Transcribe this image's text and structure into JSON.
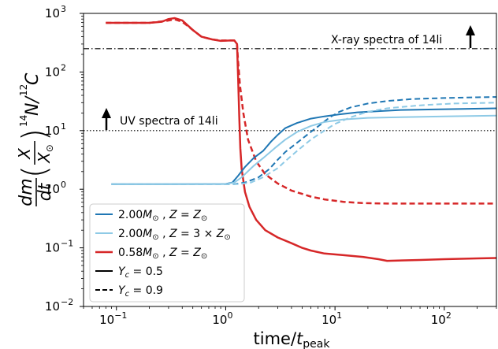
{
  "chart_data": {
    "type": "line",
    "xlabel": "time/t_peak",
    "ylabel": "dm/dt (X/X⊙) ¹⁴N/¹²C",
    "x_scale": "log",
    "y_scale": "log",
    "xlim": [
      0.05,
      300
    ],
    "ylim": [
      0.01,
      1000
    ],
    "x_ticks": [
      {
        "value": 0.1,
        "base": "10",
        "exp": "−1"
      },
      {
        "value": 1,
        "base": "10",
        "exp": "0"
      },
      {
        "value": 10,
        "base": "10",
        "exp": "1"
      },
      {
        "value": 100,
        "base": "10",
        "exp": "2"
      }
    ],
    "y_ticks": [
      {
        "value": 0.01,
        "base": "10",
        "exp": "−2"
      },
      {
        "value": 0.1,
        "base": "10",
        "exp": "−1"
      },
      {
        "value": 1,
        "base": "10",
        "exp": "0"
      },
      {
        "value": 10,
        "base": "10",
        "exp": "1"
      },
      {
        "value": 100,
        "base": "10",
        "exp": "2"
      },
      {
        "value": 1000,
        "base": "10",
        "exp": "3"
      }
    ],
    "reference_lines": [
      {
        "y": 250,
        "style": "dashdot",
        "label": "X-ray spectra of 14li"
      },
      {
        "y": 10,
        "style": "dotted",
        "label": "UV spectra of 14li"
      }
    ],
    "legend": {
      "placement": "lower-left",
      "entries": [
        {
          "label": "2.00M⊙ , Z = Z⊙",
          "color": "#1f77b4",
          "style": "solid"
        },
        {
          "label": "2.00M⊙ , Z = 3 × Z⊙",
          "color": "#8ecae6",
          "style": "solid"
        },
        {
          "label": "0.58M⊙ , Z = Z⊙",
          "color": "#d62728",
          "style": "solid"
        },
        {
          "label": "Yc = 0.5",
          "color": "#000000",
          "style": "solid"
        },
        {
          "label": "Yc = 0.9",
          "color": "#000000",
          "style": "dashed"
        }
      ]
    },
    "series": [
      {
        "color": "#d62728",
        "style": "solid",
        "width": 2.5,
        "points": [
          [
            0.08,
            690
          ],
          [
            0.2,
            690
          ],
          [
            0.26,
            720
          ],
          [
            0.3,
            800
          ],
          [
            0.34,
            830
          ],
          [
            0.4,
            760
          ],
          [
            0.5,
            520
          ],
          [
            0.6,
            400
          ],
          [
            0.75,
            360
          ],
          [
            0.9,
            340
          ],
          [
            1.1,
            345
          ],
          [
            1.2,
            345
          ],
          [
            1.27,
            300
          ],
          [
            1.3,
            80
          ],
          [
            1.33,
            18
          ],
          [
            1.36,
            5
          ],
          [
            1.4,
            2.2
          ],
          [
            1.5,
            0.9
          ],
          [
            1.65,
            0.5
          ],
          [
            1.9,
            0.3
          ],
          [
            2.3,
            0.2
          ],
          [
            3,
            0.15
          ],
          [
            4,
            0.12
          ],
          [
            5,
            0.1
          ],
          [
            6,
            0.09
          ],
          [
            8,
            0.08
          ],
          [
            12,
            0.075
          ],
          [
            18,
            0.07
          ],
          [
            25,
            0.064
          ],
          [
            30,
            0.06
          ],
          [
            60,
            0.062
          ],
          [
            100,
            0.064
          ],
          [
            200,
            0.066
          ],
          [
            300,
            0.067
          ]
        ]
      },
      {
        "color": "#d62728",
        "style": "dashed",
        "width": 2.5,
        "points": [
          [
            0.08,
            690
          ],
          [
            0.2,
            690
          ],
          [
            0.28,
            740
          ],
          [
            0.34,
            790
          ],
          [
            0.4,
            720
          ],
          [
            0.5,
            520
          ],
          [
            0.6,
            400
          ],
          [
            0.75,
            360
          ],
          [
            0.9,
            345
          ],
          [
            1.1,
            345
          ],
          [
            1.2,
            345
          ],
          [
            1.27,
            300
          ],
          [
            1.3,
            150
          ],
          [
            1.35,
            60
          ],
          [
            1.45,
            20
          ],
          [
            1.6,
            7
          ],
          [
            1.9,
            3
          ],
          [
            2.3,
            1.8
          ],
          [
            3,
            1.25
          ],
          [
            4,
            0.95
          ],
          [
            6,
            0.75
          ],
          [
            8,
            0.67
          ],
          [
            12,
            0.61
          ],
          [
            18,
            0.58
          ],
          [
            30,
            0.57
          ],
          [
            100,
            0.57
          ],
          [
            300,
            0.57
          ]
        ]
      },
      {
        "color": "#1f77b4",
        "style": "solid",
        "width": 2,
        "points": [
          [
            0.09,
            1.22
          ],
          [
            0.3,
            1.22
          ],
          [
            1,
            1.23
          ],
          [
            1.15,
            1.3
          ],
          [
            1.3,
            1.7
          ],
          [
            1.5,
            2.4
          ],
          [
            1.8,
            3.4
          ],
          [
            2.2,
            4.5
          ],
          [
            2.6,
            6.5
          ],
          [
            3,
            8.5
          ],
          [
            3.5,
            11
          ],
          [
            4.5,
            13.5
          ],
          [
            6,
            16
          ],
          [
            8,
            17.5
          ],
          [
            11,
            19
          ],
          [
            16,
            20.5
          ],
          [
            25,
            21.5
          ],
          [
            40,
            22.5
          ],
          [
            80,
            23
          ],
          [
            150,
            23.5
          ],
          [
            300,
            24
          ]
        ]
      },
      {
        "color": "#1f77b4",
        "style": "dashed",
        "width": 2,
        "points": [
          [
            0.09,
            1.22
          ],
          [
            1.2,
            1.22
          ],
          [
            1.5,
            1.3
          ],
          [
            2,
            1.6
          ],
          [
            2.5,
            2.2
          ],
          [
            3,
            3.2
          ],
          [
            3.5,
            4.3
          ],
          [
            4.5,
            6.2
          ],
          [
            6,
            9.5
          ],
          [
            7.5,
            13
          ],
          [
            9,
            17
          ],
          [
            11,
            21
          ],
          [
            14,
            25
          ],
          [
            20,
            29
          ],
          [
            30,
            32
          ],
          [
            50,
            34.5
          ],
          [
            100,
            36
          ],
          [
            200,
            37
          ],
          [
            300,
            37.5
          ]
        ]
      },
      {
        "color": "#8ecae6",
        "style": "solid",
        "width": 2,
        "points": [
          [
            0.09,
            1.22
          ],
          [
            0.3,
            1.22
          ],
          [
            1,
            1.22
          ],
          [
            1.2,
            1.3
          ],
          [
            1.4,
            1.6
          ],
          [
            1.8,
            2.5
          ],
          [
            2.2,
            3.4
          ],
          [
            2.8,
            5
          ],
          [
            3.5,
            7
          ],
          [
            4.5,
            9.5
          ],
          [
            6,
            12
          ],
          [
            8,
            14
          ],
          [
            12,
            15.5
          ],
          [
            20,
            16.5
          ],
          [
            40,
            17
          ],
          [
            100,
            17.5
          ],
          [
            300,
            18
          ]
        ]
      },
      {
        "color": "#8ecae6",
        "style": "dashed",
        "width": 2,
        "points": [
          [
            0.09,
            1.22
          ],
          [
            1.3,
            1.22
          ],
          [
            1.7,
            1.3
          ],
          [
            2.2,
            1.6
          ],
          [
            3,
            2.3
          ],
          [
            3.5,
            3
          ],
          [
            4.5,
            4.5
          ],
          [
            6,
            7
          ],
          [
            8,
            10
          ],
          [
            10,
            13
          ],
          [
            14,
            17
          ],
          [
            20,
            21
          ],
          [
            30,
            24
          ],
          [
            60,
            27
          ],
          [
            120,
            29
          ],
          [
            300,
            30
          ]
        ]
      }
    ]
  }
}
